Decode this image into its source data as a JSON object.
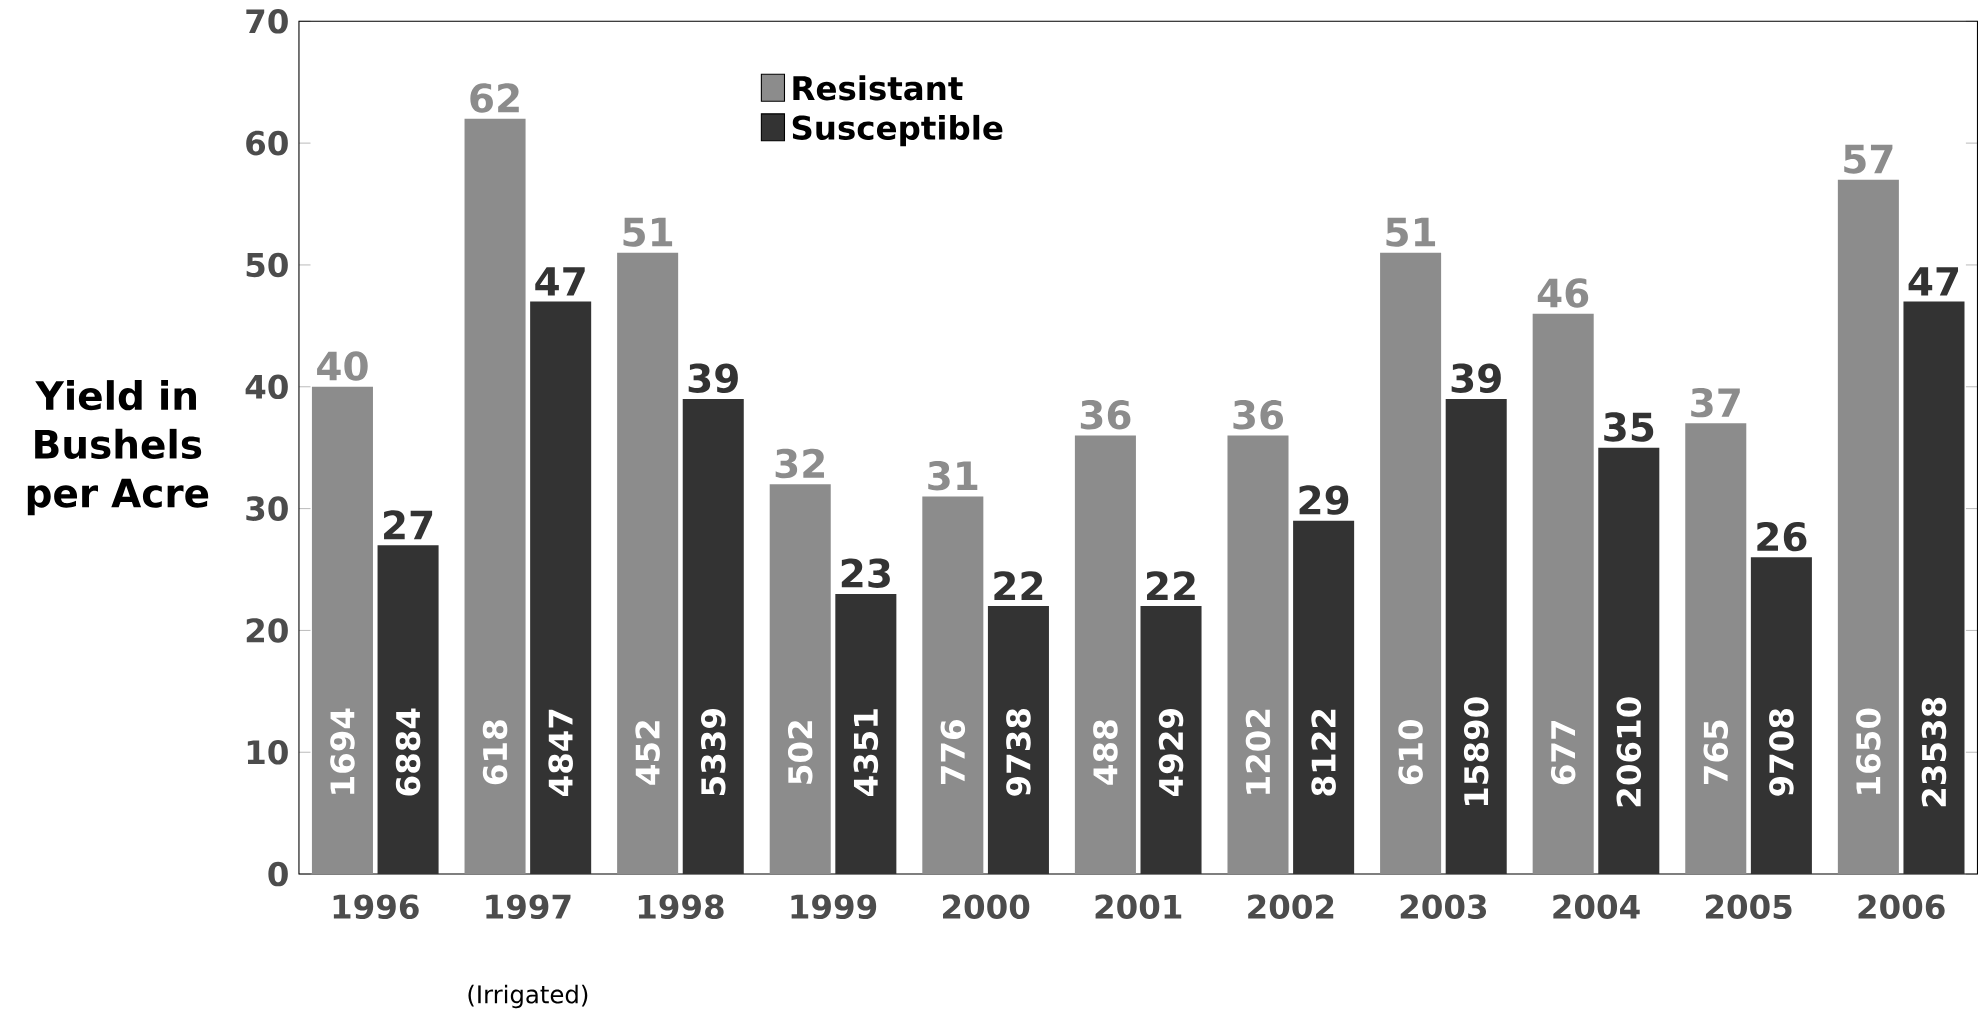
{
  "chart_data": {
    "type": "bar",
    "ylabel": "Yield in Bushels per Acre",
    "categories": [
      "1996",
      "1997",
      "1998",
      "1999",
      "2000",
      "2001",
      "2002",
      "2003",
      "2004",
      "2005",
      "2006"
    ],
    "series": [
      {
        "name": "Resistant",
        "color": "#8c8c8c",
        "values": [
          40,
          62,
          51,
          32,
          31,
          36,
          36,
          51,
          46,
          37,
          57
        ]
      },
      {
        "name": "Susceptible",
        "color": "#333333",
        "values": [
          27,
          47,
          39,
          23,
          22,
          22,
          29,
          39,
          35,
          26,
          47
        ]
      }
    ],
    "ylim": [
      0,
      70
    ],
    "yticks": [
      0,
      10,
      20,
      30,
      40,
      50,
      60,
      70
    ],
    "data_labels": true,
    "legend": "top left",
    "grid": false,
    "annotations": [
      "(Irrigated)",
      {
        "text": "1694",
        "x": "1996",
        "y": 10
      },
      {
        "text": "6884",
        "x": "1996",
        "y": 10
      },
      {
        "text": "618",
        "x": "1997",
        "y": 10
      },
      {
        "text": "4847",
        "x": "1997",
        "y": 10
      },
      {
        "text": "452",
        "x": "1998",
        "y": 10
      },
      {
        "text": "5339",
        "x": "1998",
        "y": 10
      },
      {
        "text": "502",
        "x": "1999",
        "y": 10
      },
      {
        "text": "4351",
        "x": "1999",
        "y": 10
      },
      {
        "text": "776",
        "x": "2000",
        "y": 10
      },
      {
        "text": "9738",
        "x": "2000",
        "y": 10
      },
      {
        "text": "488",
        "x": "2001",
        "y": 10
      },
      {
        "text": "4929",
        "x": "2001",
        "y": 10
      },
      {
        "text": "1202",
        "x": "2002",
        "y": 10
      },
      {
        "text": "8122",
        "x": "2002",
        "y": 10
      },
      {
        "text": "610",
        "x": "2003",
        "y": 10
      },
      {
        "text": "15890",
        "x": "2003",
        "y": 10
      },
      {
        "text": "677",
        "x": "2004",
        "y": 10
      },
      {
        "text": "20610",
        "x": "2004",
        "y": 10
      },
      {
        "text": "765",
        "x": "2005",
        "y": 10
      },
      {
        "text": "9708",
        "x": "2005",
        "y": 10
      },
      {
        "text": "1650",
        "x": "2006",
        "y": 10
      },
      {
        "text": "23538",
        "x": "2006",
        "y": 10
      }
    ]
  }
}
